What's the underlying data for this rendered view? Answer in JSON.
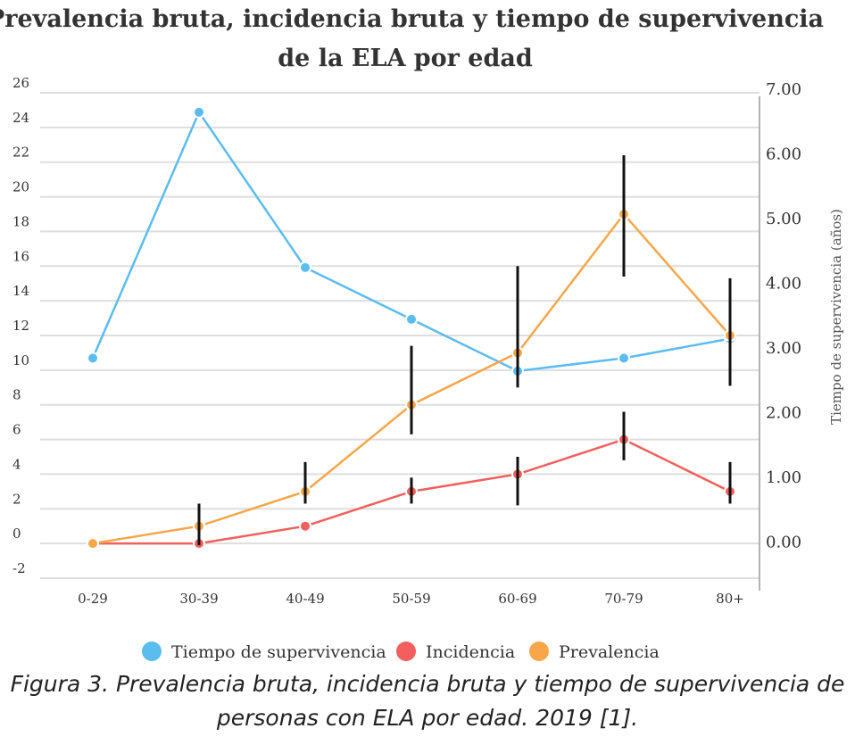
{
  "caption": "Figura 3. Prevalencia bruta, incidencia bruta y tiempo de supervivencia de personas con ELA por edad. 2019 [1].",
  "chart_data": {
    "type": "line",
    "title_lines": [
      "Prevalencia bruta, incidencia bruta y tiempo de supervivencia",
      "de la ELA por edad"
    ],
    "categories": [
      "0-29",
      "30-39",
      "40-49",
      "50-59",
      "60-69",
      "70-79",
      "80+"
    ],
    "y_left": {
      "range": [
        -2,
        26
      ],
      "ticks": [
        "-2",
        "0",
        "2",
        "4",
        "6",
        "8",
        "10",
        "12",
        "14",
        "16",
        "18",
        "20",
        "22",
        "24",
        "26"
      ]
    },
    "y_right": {
      "label": "Tiempo de supervivencia (años)",
      "range": [
        -0.5,
        7.0
      ],
      "ticks": [
        "0.00",
        "1.00",
        "2.00",
        "3.00",
        "4.00",
        "5.00",
        "6.00",
        "7.00"
      ]
    },
    "grid": true,
    "legend_position": "bottom",
    "series": [
      {
        "name": "Tiempo de supervivencia",
        "color": "#5bbcf0",
        "axis": "right",
        "values": [
          2.9,
          6.7,
          4.3,
          3.5,
          2.7,
          2.9,
          3.2
        ],
        "error_bars": null
      },
      {
        "name": "Incidencia",
        "color": "#f25f5c",
        "axis": "left",
        "values": [
          0,
          0,
          1,
          3,
          4,
          6,
          3
        ],
        "error_bars": [
          null,
          null,
          null,
          [
            2.3,
            3.8
          ],
          [
            2.2,
            5.0
          ],
          [
            4.8,
            7.6
          ],
          [
            2.3,
            4.7
          ]
        ]
      },
      {
        "name": "Prevalencia",
        "color": "#f7a64a",
        "axis": "left",
        "values": [
          0,
          1,
          3,
          8,
          11,
          19,
          12
        ],
        "error_bars": [
          null,
          [
            -0.1,
            2.3
          ],
          [
            2.3,
            4.7
          ],
          [
            6.3,
            11.4
          ],
          [
            9.0,
            16.0
          ],
          [
            15.4,
            22.4
          ],
          [
            9.1,
            15.3
          ]
        ]
      }
    ]
  }
}
